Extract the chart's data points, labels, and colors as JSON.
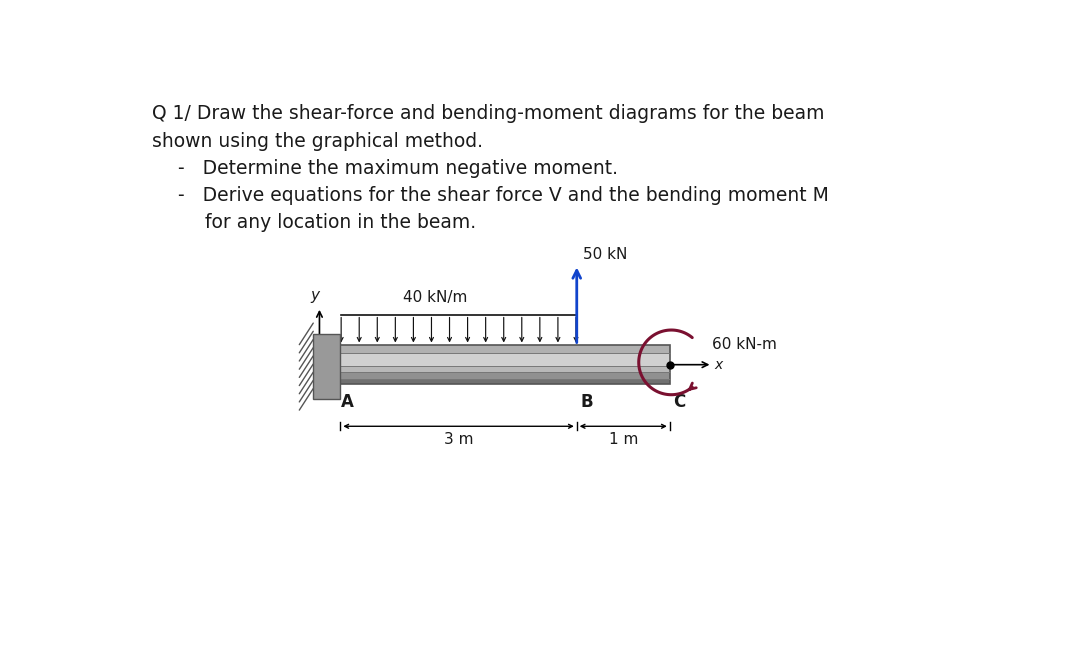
{
  "title_line1": "Q 1/ Draw the shear-force and bending-moment diagrams for the beam",
  "title_line2": "shown using the graphical method.",
  "bullet1": "-   Determine the maximum negative moment.",
  "bullet2": "-   Derive equations for the shear force V and the bending moment M",
  "bullet2_cont": "     for any location in the beam.",
  "label_dist_load": "40 kN/m",
  "label_point_load": "50 kN",
  "label_moment": "60 kN-m",
  "label_A": "A",
  "label_B": "B",
  "label_C": "C",
  "label_x": "x",
  "label_y": "y",
  "label_3m": "3 m",
  "label_1m": "1 m",
  "bg_color": "#ffffff",
  "text_color": "#1a1a1a",
  "beam_color_light": "#cccccc",
  "beam_color_mid": "#aaaaaa",
  "beam_color_dark": "#777777",
  "wall_color": "#999999",
  "hatch_color": "#555555",
  "load_arrow_color": "#111111",
  "point_load_color": "#1144cc",
  "moment_color": "#7a1030",
  "fs_title": 13.5,
  "fs_label": 11,
  "fs_abc": 12
}
